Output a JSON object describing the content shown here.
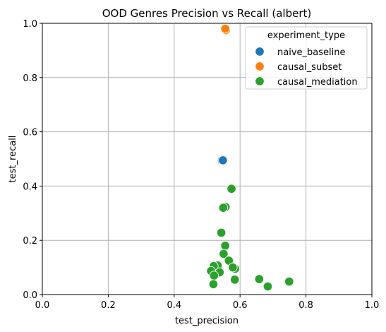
{
  "chart_data": {
    "type": "scatter",
    "title": "OOD Genres Precision vs Recall (albert)",
    "xlabel": "test_precision",
    "ylabel": "test_recall",
    "xlim": [
      0.0,
      1.0
    ],
    "ylim": [
      0.0,
      1.0
    ],
    "xticks": [
      "0.0",
      "0.2",
      "0.4",
      "0.6",
      "0.8",
      "1.0"
    ],
    "yticks": [
      "0.0",
      "0.2",
      "0.4",
      "0.6",
      "0.8",
      "1.0"
    ],
    "grid": true,
    "legend": {
      "title": "experiment_type",
      "placement": "upper-right"
    },
    "series": [
      {
        "name": "naive_baseline",
        "color": "#1f77b4",
        "points": [
          {
            "x": 0.545,
            "y": 0.495
          },
          {
            "x": 0.548,
            "y": 0.495
          }
        ]
      },
      {
        "name": "causal_subset",
        "color": "#ff7f0e",
        "points": [
          {
            "x": 0.557,
            "y": 0.975
          },
          {
            "x": 0.555,
            "y": 0.98
          }
        ]
      },
      {
        "name": "causal_mediation",
        "color": "#2ca02c",
        "points": [
          {
            "x": 0.574,
            "y": 0.39
          },
          {
            "x": 0.556,
            "y": 0.323
          },
          {
            "x": 0.549,
            "y": 0.32
          },
          {
            "x": 0.543,
            "y": 0.228
          },
          {
            "x": 0.555,
            "y": 0.18
          },
          {
            "x": 0.55,
            "y": 0.15
          },
          {
            "x": 0.566,
            "y": 0.125
          },
          {
            "x": 0.585,
            "y": 0.095
          },
          {
            "x": 0.578,
            "y": 0.1
          },
          {
            "x": 0.532,
            "y": 0.107
          },
          {
            "x": 0.52,
            "y": 0.105
          },
          {
            "x": 0.512,
            "y": 0.087
          },
          {
            "x": 0.538,
            "y": 0.082
          },
          {
            "x": 0.521,
            "y": 0.07
          },
          {
            "x": 0.584,
            "y": 0.055
          },
          {
            "x": 0.519,
            "y": 0.038
          },
          {
            "x": 0.658,
            "y": 0.057
          },
          {
            "x": 0.684,
            "y": 0.03
          },
          {
            "x": 0.749,
            "y": 0.048
          }
        ]
      }
    ]
  }
}
